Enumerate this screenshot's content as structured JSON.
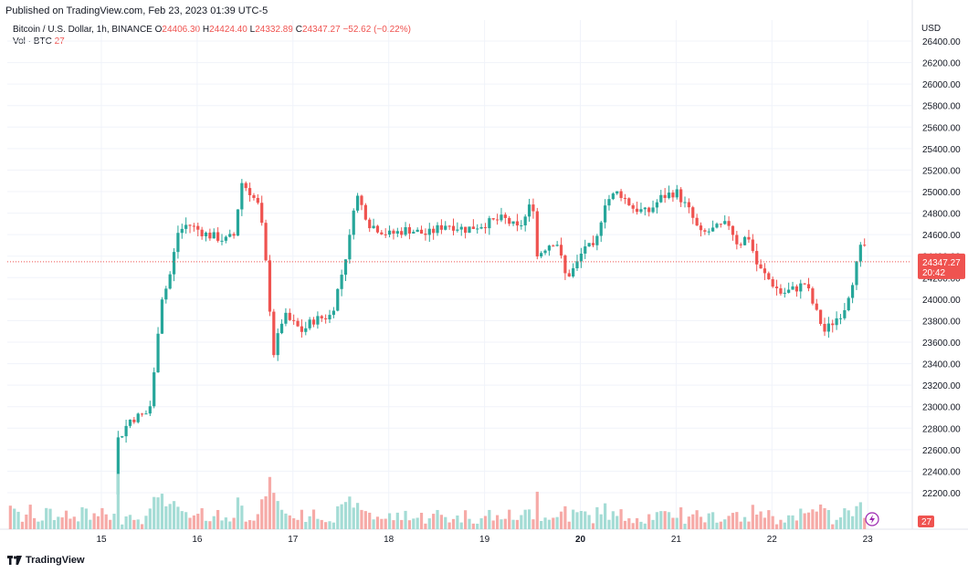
{
  "header": {
    "published": "Published on TradingView.com, Feb 23, 2023 01:39 UTC-5"
  },
  "legend": {
    "symbol": "Bitcoin / U.S. Dollar, 1h, BINANCE",
    "o_label": "O",
    "o": "24406.30",
    "h_label": "H",
    "h": "24424.40",
    "l_label": "L",
    "l": "24332.89",
    "c_label": "C",
    "c": "24347.27",
    "change": "−52.62 (−0.22%)",
    "vol_label": "Vol · BTC",
    "vol_value": "27"
  },
  "price_axis": {
    "currency": "USD",
    "ticks": [
      "26400.00",
      "26200.00",
      "26000.00",
      "25800.00",
      "25600.00",
      "25400.00",
      "25200.00",
      "25000.00",
      "24800.00",
      "24600.00",
      "24400.00",
      "24200.00",
      "24000.00",
      "23800.00",
      "23600.00",
      "23400.00",
      "23200.00",
      "23000.00",
      "22800.00",
      "22600.00",
      "22400.00",
      "22200.00"
    ],
    "last_price_label": "24347.27",
    "countdown_label": "20:42",
    "volume_label": "27"
  },
  "time_axis": {
    "ticks": [
      {
        "label": "15",
        "day": 15,
        "bold": false
      },
      {
        "label": "16",
        "day": 16,
        "bold": false
      },
      {
        "label": "17",
        "day": 17,
        "bold": false
      },
      {
        "label": "18",
        "day": 18,
        "bold": false
      },
      {
        "label": "19",
        "day": 19,
        "bold": false
      },
      {
        "label": "20",
        "day": 20,
        "bold": true
      },
      {
        "label": "21",
        "day": 21,
        "bold": false
      },
      {
        "label": "22",
        "day": 22,
        "bold": false
      },
      {
        "label": "23",
        "day": 23,
        "bold": false
      }
    ]
  },
  "footer": {
    "brand": "TradingView"
  },
  "colors": {
    "up": "#26a69a",
    "down": "#ef5350",
    "vol_up": "#a4dcd5",
    "vol_down": "#f6aaa7",
    "grid": "#f0f3fa",
    "text": "#131722"
  },
  "chart_data": {
    "type": "candlestick",
    "symbol": "BTCUSD",
    "interval": "1h",
    "x_range": [
      "2023-02-14",
      "2023-02-23"
    ],
    "ylim": [
      22200,
      26500
    ],
    "last_price": 24347.27,
    "path_points": [
      {
        "day": 14.05,
        "price": null
      },
      {
        "day": 14.15,
        "price": null
      },
      {
        "day": 14.9,
        "price": null
      },
      {
        "day": 15.18,
        "price": 22700
      },
      {
        "day": 15.3,
        "price": 22880
      },
      {
        "day": 15.5,
        "price": 22950
      },
      {
        "day": 15.55,
        "price": 23300
      },
      {
        "day": 15.62,
        "price": 24000
      },
      {
        "day": 15.7,
        "price": 24150
      },
      {
        "day": 15.8,
        "price": 24620
      },
      {
        "day": 15.9,
        "price": 24700
      },
      {
        "day": 16.1,
        "price": 24600
      },
      {
        "day": 16.3,
        "price": 24550
      },
      {
        "day": 16.4,
        "price": 24600
      },
      {
        "day": 16.45,
        "price": 25100
      },
      {
        "day": 16.55,
        "price": 25000
      },
      {
        "day": 16.65,
        "price": 24850
      },
      {
        "day": 16.7,
        "price": 24500
      },
      {
        "day": 16.75,
        "price": 24000
      },
      {
        "day": 16.8,
        "price": 23500
      },
      {
        "day": 16.9,
        "price": 23850
      },
      {
        "day": 17.1,
        "price": 23700
      },
      {
        "day": 17.2,
        "price": 23800
      },
      {
        "day": 17.4,
        "price": 23850
      },
      {
        "day": 17.5,
        "price": 24200
      },
      {
        "day": 17.6,
        "price": 24600
      },
      {
        "day": 17.65,
        "price": 25000
      },
      {
        "day": 17.8,
        "price": 24700
      },
      {
        "day": 18.0,
        "price": 24600
      },
      {
        "day": 18.2,
        "price": 24650
      },
      {
        "day": 18.4,
        "price": 24600
      },
      {
        "day": 18.6,
        "price": 24700
      },
      {
        "day": 18.8,
        "price": 24650
      },
      {
        "day": 19.0,
        "price": 24700
      },
      {
        "day": 19.2,
        "price": 24750
      },
      {
        "day": 19.35,
        "price": 24650
      },
      {
        "day": 19.45,
        "price": 24800
      },
      {
        "day": 19.5,
        "price": 24950
      },
      {
        "day": 19.55,
        "price": 24400
      },
      {
        "day": 19.65,
        "price": 24500
      },
      {
        "day": 19.75,
        "price": 24550
      },
      {
        "day": 19.85,
        "price": 24200
      },
      {
        "day": 19.95,
        "price": 24300
      },
      {
        "day": 20.05,
        "price": 24500
      },
      {
        "day": 20.15,
        "price": 24450
      },
      {
        "day": 20.25,
        "price": 24900
      },
      {
        "day": 20.4,
        "price": 25000
      },
      {
        "day": 20.55,
        "price": 24850
      },
      {
        "day": 20.7,
        "price": 24800
      },
      {
        "day": 20.85,
        "price": 24950
      },
      {
        "day": 21.0,
        "price": 25000
      },
      {
        "day": 21.15,
        "price": 24800
      },
      {
        "day": 21.25,
        "price": 24600
      },
      {
        "day": 21.4,
        "price": 24650
      },
      {
        "day": 21.55,
        "price": 24700
      },
      {
        "day": 21.65,
        "price": 24500
      },
      {
        "day": 21.75,
        "price": 24600
      },
      {
        "day": 21.85,
        "price": 24300
      },
      {
        "day": 21.95,
        "price": 24200
      },
      {
        "day": 22.1,
        "price": 24050
      },
      {
        "day": 22.25,
        "price": 24100
      },
      {
        "day": 22.35,
        "price": 24150
      },
      {
        "day": 22.45,
        "price": 23900
      },
      {
        "day": 22.55,
        "price": 23700
      },
      {
        "day": 22.65,
        "price": 23800
      },
      {
        "day": 22.75,
        "price": 23900
      },
      {
        "day": 22.85,
        "price": 24200
      },
      {
        "day": 22.95,
        "price": 24550
      },
      {
        "day": 23.02,
        "price": 24347.27
      }
    ]
  }
}
